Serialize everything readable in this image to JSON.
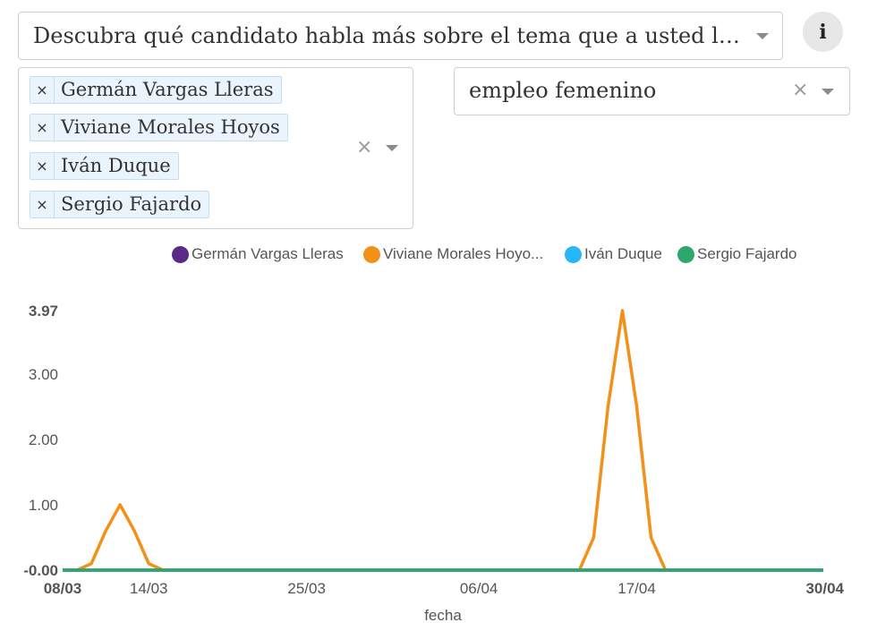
{
  "topic_select": {
    "value": "Descubra qué candidato habla más sobre el tema que a usted le interesa",
    "display": "Descubra qué candidato habla más sobre el tema que a usted le inte..."
  },
  "info_button": {
    "icon": "info-icon",
    "glyph": "i"
  },
  "candidates_select": {
    "tags": [
      {
        "label": "Germán Vargas Lleras"
      },
      {
        "label": "Viviane Morales Hoyos"
      },
      {
        "label": "Iván Duque"
      },
      {
        "label": "Sergio Fajardo"
      }
    ],
    "clear": "×"
  },
  "keyword_select": {
    "value": "empleo femenino",
    "clear": "×"
  },
  "chart_data": {
    "type": "line",
    "x": [
      "08/03",
      "09/03",
      "10/03",
      "11/03",
      "12/03",
      "13/03",
      "14/03",
      "15/03",
      "16/03",
      "17/03",
      "18/03",
      "19/03",
      "20/03",
      "21/03",
      "22/03",
      "23/03",
      "24/03",
      "25/03",
      "26/03",
      "27/03",
      "28/03",
      "29/03",
      "30/03",
      "31/03",
      "01/04",
      "02/04",
      "03/04",
      "04/04",
      "05/04",
      "06/04",
      "07/04",
      "08/04",
      "09/04",
      "10/04",
      "11/04",
      "12/04",
      "13/04",
      "14/04",
      "15/04",
      "16/04",
      "17/04",
      "18/04",
      "19/04",
      "20/04",
      "21/04",
      "22/04",
      "23/04",
      "24/04",
      "25/04",
      "26/04",
      "27/04",
      "28/04",
      "29/04",
      "30/04"
    ],
    "xticks": [
      "08/03",
      "14/03",
      "25/03",
      "06/04",
      "17/04",
      "30/04"
    ],
    "xlabel": "fecha",
    "ylabel": "",
    "yticks": [
      {
        "value": 3.97,
        "label": "3.97",
        "bold": true
      },
      {
        "value": 3.0,
        "label": "3.00",
        "bold": false
      },
      {
        "value": 2.0,
        "label": "2.00",
        "bold": false
      },
      {
        "value": 1.0,
        "label": "1.00",
        "bold": false
      },
      {
        "value": 0.0,
        "label": "-0.00",
        "bold": true
      }
    ],
    "ylim": [
      0,
      3.97
    ],
    "legend_position": "top",
    "series": [
      {
        "name": "Germán Vargas Lleras",
        "legend_label": "Germán Vargas Lleras",
        "color": "#5b2a86",
        "values": [
          0,
          0,
          0,
          0,
          0,
          0,
          0,
          0,
          0,
          0,
          0,
          0,
          0,
          0,
          0,
          0,
          0,
          0,
          0,
          0,
          0,
          0,
          0,
          0,
          0,
          0,
          0,
          0,
          0,
          0,
          0,
          0,
          0,
          0,
          0,
          0,
          0,
          0,
          0,
          0,
          0,
          0,
          0,
          0,
          0,
          0,
          0,
          0,
          0,
          0,
          0,
          0,
          0,
          0
        ]
      },
      {
        "name": "Viviane Morales Hoyos",
        "legend_label": "Viviane Morales Hoyo...",
        "color": "#f39019",
        "values": [
          0,
          0,
          0.1,
          0.6,
          1.0,
          0.6,
          0.1,
          0,
          0,
          0,
          0,
          0,
          0,
          0,
          0,
          0,
          0,
          0,
          0,
          0,
          0,
          0,
          0,
          0,
          0,
          0,
          0,
          0,
          0,
          0,
          0,
          0,
          0,
          0,
          0,
          0,
          0,
          0.5,
          2.5,
          3.97,
          2.5,
          0.5,
          0,
          0,
          0,
          0,
          0,
          0,
          0,
          0,
          0,
          0,
          0,
          0
        ]
      },
      {
        "name": "Iván Duque",
        "legend_label": "Iván Duque",
        "color": "#29b6f6",
        "values": [
          0,
          0,
          0,
          0,
          0,
          0,
          0,
          0,
          0,
          0,
          0,
          0,
          0,
          0,
          0,
          0,
          0,
          0,
          0,
          0,
          0,
          0,
          0,
          0,
          0,
          0,
          0,
          0,
          0,
          0,
          0,
          0,
          0,
          0,
          0,
          0,
          0,
          0,
          0,
          0,
          0,
          0,
          0,
          0,
          0,
          0,
          0,
          0,
          0,
          0,
          0,
          0,
          0,
          0
        ]
      },
      {
        "name": "Sergio Fajardo",
        "legend_label": "Sergio Fajardo",
        "color": "#2ea86a",
        "values": [
          0,
          0,
          0,
          0,
          0,
          0,
          0,
          0,
          0,
          0,
          0,
          0,
          0,
          0,
          0,
          0,
          0,
          0,
          0,
          0,
          0,
          0,
          0,
          0,
          0,
          0,
          0,
          0,
          0,
          0,
          0,
          0,
          0,
          0,
          0,
          0,
          0,
          0,
          0,
          0,
          0,
          0,
          0,
          0,
          0,
          0,
          0,
          0,
          0,
          0,
          0,
          0,
          0,
          0
        ]
      }
    ]
  }
}
